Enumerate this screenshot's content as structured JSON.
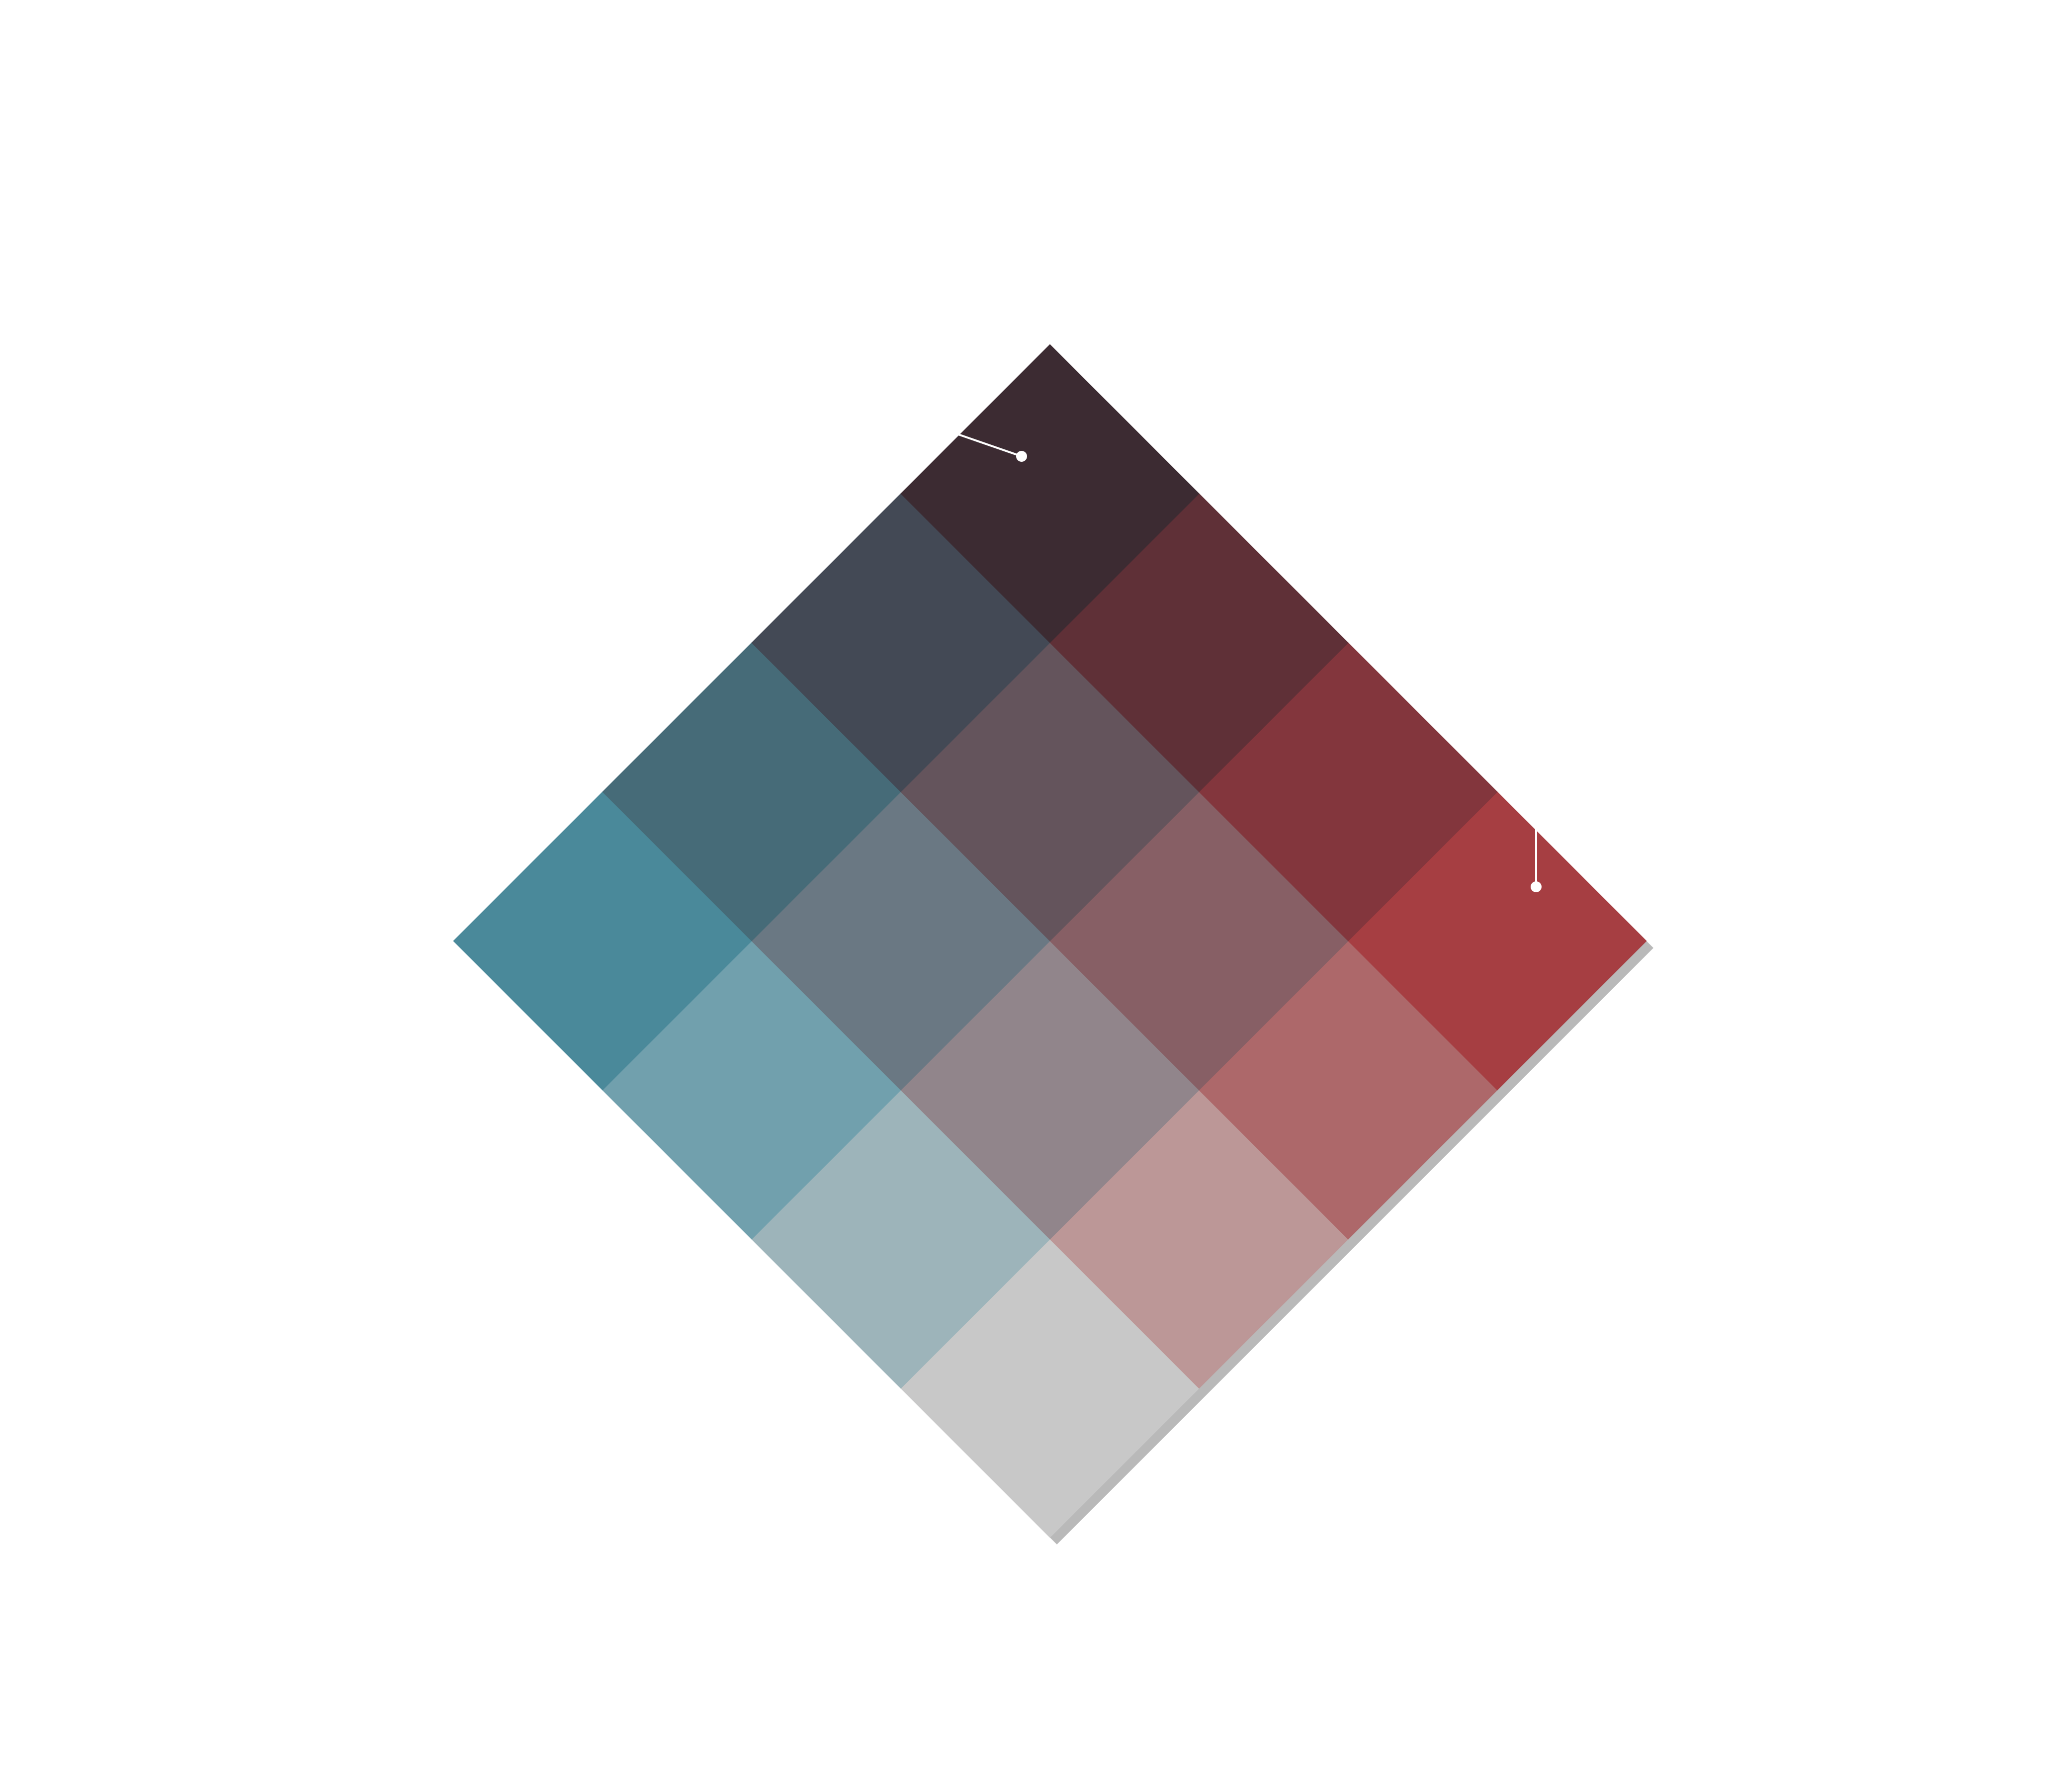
{
  "chart_data": {
    "type": "heatmap",
    "title": "",
    "xlabel": "",
    "ylabel": "",
    "grid": false,
    "legend": "none",
    "layout": "bivariate-diamond",
    "rows": 4,
    "cols": 4,
    "cells": [
      {
        "row": 0,
        "col": 0,
        "color": "#c8c8c8"
      },
      {
        "row": 0,
        "col": 1,
        "color": "#bc9797"
      },
      {
        "row": 0,
        "col": 2,
        "color": "#ad686a"
      },
      {
        "row": 0,
        "col": 3,
        "color": "#a63e42"
      },
      {
        "row": 1,
        "col": 0,
        "color": "#9db4ba"
      },
      {
        "row": 1,
        "col": 1,
        "color": "#91858b"
      },
      {
        "row": 1,
        "col": 2,
        "color": "#875f65"
      },
      {
        "row": 1,
        "col": 3,
        "color": "#83363d"
      },
      {
        "row": 2,
        "col": 0,
        "color": "#71a0ad"
      },
      {
        "row": 2,
        "col": 1,
        "color": "#6a7883"
      },
      {
        "row": 2,
        "col": 2,
        "color": "#64545c"
      },
      {
        "row": 2,
        "col": 3,
        "color": "#5f3037"
      },
      {
        "row": 3,
        "col": 0,
        "color": "#4a899a"
      },
      {
        "row": 3,
        "col": 1,
        "color": "#466b78"
      },
      {
        "row": 3,
        "col": 2,
        "color": "#434955"
      },
      {
        "row": 3,
        "col": 3,
        "color": "#3c2b32"
      }
    ],
    "callouts": [
      {
        "row": 3,
        "col": 3,
        "direction": "upper-left",
        "color": "#ffffff"
      },
      {
        "row": 0,
        "col": 3,
        "direction": "up",
        "color": "#ffffff"
      }
    ],
    "shadow_color": "#b9b9b9"
  }
}
